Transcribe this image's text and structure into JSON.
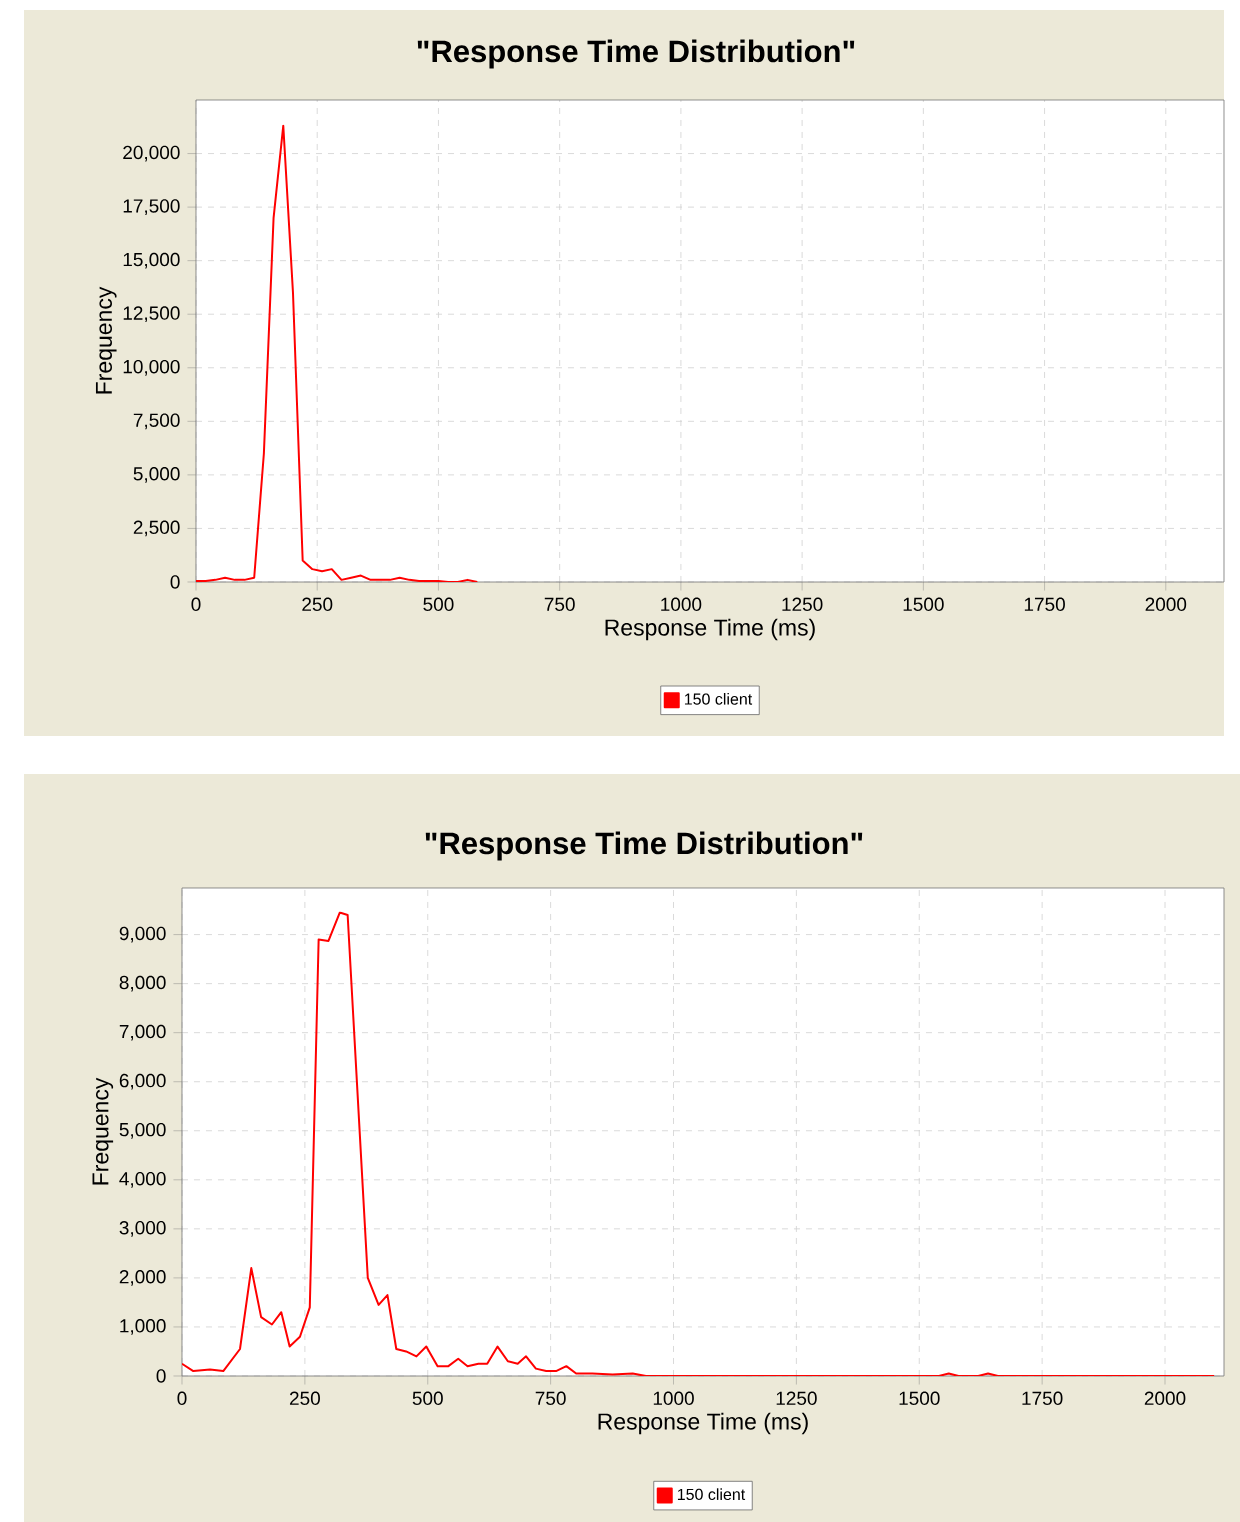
{
  "chart_data": [
    {
      "type": "line",
      "title": "\"Response Time Distribution\"",
      "xlabel": "Response Time (ms)",
      "ylabel": "Frequency",
      "x": [
        0,
        20,
        40,
        60,
        80,
        100,
        120,
        140,
        160,
        180,
        200,
        220,
        240,
        260,
        280,
        300,
        320,
        340,
        360,
        380,
        400,
        420,
        440,
        460,
        480,
        500,
        520,
        540,
        560,
        580
      ],
      "series": [
        {
          "name": "150 client",
          "color": "#ff0000",
          "values": [
            50,
            50,
            100,
            200,
            100,
            100,
            200,
            6000,
            17000,
            21300,
            13500,
            1000,
            600,
            500,
            600,
            100,
            200,
            300,
            100,
            100,
            100,
            200,
            100,
            50,
            50,
            50,
            0,
            0,
            100,
            0
          ]
        }
      ],
      "xlim": [
        0,
        2120
      ],
      "ylim": [
        0,
        22500
      ],
      "xticks": [
        0,
        250,
        500,
        750,
        1000,
        1250,
        1500,
        1750,
        2000
      ],
      "yticks": [
        0,
        {
          "value": 2500,
          "label": "2,500"
        },
        {
          "value": 5000,
          "label": "5,000"
        },
        {
          "value": 7500,
          "label": "7,500"
        },
        {
          "value": 10000,
          "label": "10,000"
        },
        {
          "value": 12500,
          "label": "12,500"
        },
        {
          "value": 15000,
          "label": "15,000"
        },
        {
          "value": 17500,
          "label": "17,500"
        },
        {
          "value": 20000,
          "label": "20,000"
        }
      ],
      "grid": true,
      "legend": "bottom"
    },
    {
      "type": "line",
      "title": "\"Response Time Distribution\"",
      "xlabel": "Response Time (ms)",
      "ylabel": "Frequency",
      "x": [
        0,
        23,
        57,
        84,
        118,
        141,
        161,
        183,
        202,
        219,
        240,
        260,
        278,
        298,
        321,
        337,
        378,
        400,
        418,
        436,
        456,
        477,
        497,
        520,
        542,
        562,
        581,
        603,
        621,
        642,
        663,
        683,
        700,
        720,
        741,
        761,
        782,
        802,
        835,
        876,
        917,
        944,
        1000,
        1540,
        1560,
        1580,
        1620,
        1640,
        1660,
        2100
      ],
      "series": [
        {
          "name": "150 client",
          "color": "#ff0000",
          "values": [
            250,
            100,
            130,
            100,
            550,
            2200,
            1200,
            1050,
            1300,
            600,
            800,
            1400,
            8900,
            8870,
            9450,
            9400,
            2000,
            1450,
            1650,
            550,
            500,
            400,
            600,
            200,
            200,
            350,
            200,
            250,
            250,
            600,
            300,
            250,
            400,
            150,
            100,
            100,
            200,
            50,
            50,
            30,
            50,
            0,
            0,
            0,
            50,
            0,
            0,
            50,
            0,
            0
          ]
        }
      ],
      "xlim": [
        0,
        2120
      ],
      "ylim": [
        0,
        9950
      ],
      "xticks": [
        0,
        250,
        500,
        750,
        1000,
        1250,
        1500,
        1750,
        2000
      ],
      "yticks": [
        0,
        {
          "value": 1000,
          "label": "1,000"
        },
        {
          "value": 2000,
          "label": "2,000"
        },
        {
          "value": 3000,
          "label": "3,000"
        },
        {
          "value": 4000,
          "label": "4,000"
        },
        {
          "value": 5000,
          "label": "5,000"
        },
        {
          "value": 6000,
          "label": "6,000"
        },
        {
          "value": 7000,
          "label": "7,000"
        },
        {
          "value": 8000,
          "label": "8,000"
        },
        {
          "value": 9000,
          "label": "9,000"
        }
      ],
      "grid": true,
      "legend": "bottom"
    }
  ]
}
